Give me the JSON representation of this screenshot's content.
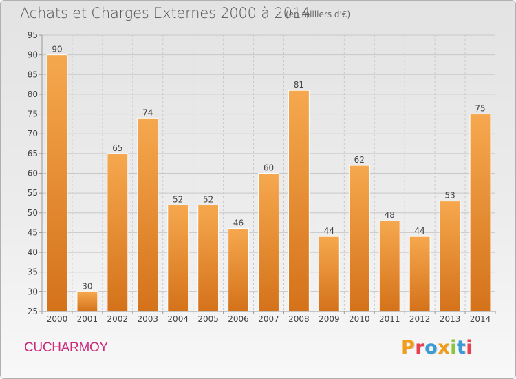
{
  "header": {
    "title": "Achats et Charges Externes 2000 à 2014",
    "subtitle": "(en milliers d'€)"
  },
  "footer": {
    "place": "CUCHARMOY",
    "logo_text": "Proxiti",
    "logo_colors": [
      "#f39c1a",
      "#e8414f",
      "#3b9bd7",
      "#f39c1a",
      "#8cc63f",
      "#3b9bd7",
      "#e8414f"
    ]
  },
  "colors": {
    "bar_light": "#f6a84e",
    "bar_dark": "#d4721a",
    "axis": "#999999",
    "grid": "#c8c8c8",
    "text": "#444444"
  },
  "chart_data": {
    "type": "bar",
    "title": "Achats et Charges Externes 2000 à 2014",
    "subtitle": "(en milliers d'€)",
    "categories": [
      "2000",
      "2001",
      "2002",
      "2003",
      "2004",
      "2005",
      "2006",
      "2007",
      "2008",
      "2009",
      "2010",
      "2011",
      "2012",
      "2013",
      "2014"
    ],
    "values": [
      90,
      30,
      65,
      74,
      52,
      52,
      46,
      60,
      81,
      44,
      62,
      48,
      44,
      53,
      75
    ],
    "ylim": [
      25,
      95
    ],
    "yticks": [
      25,
      30,
      35,
      40,
      45,
      50,
      55,
      60,
      65,
      70,
      75,
      80,
      85,
      90,
      95
    ],
    "grid": true,
    "data_labels": true
  }
}
